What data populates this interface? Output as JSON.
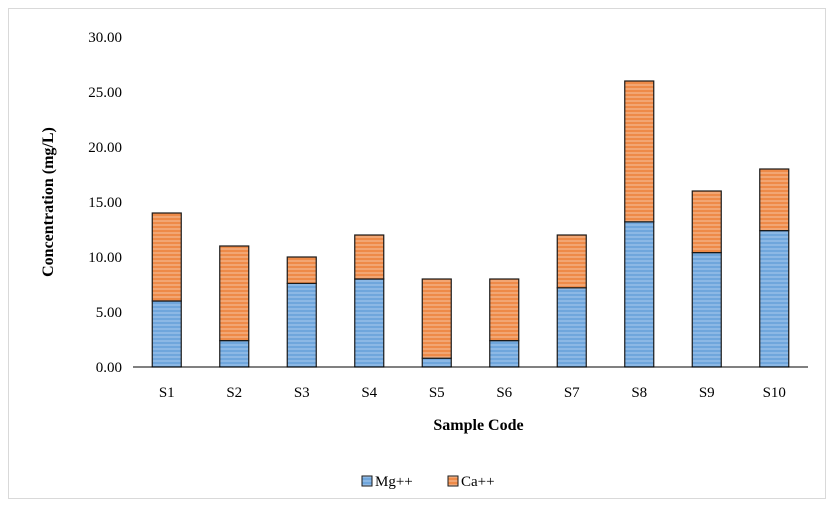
{
  "chart_data": {
    "type": "bar",
    "stacked": true,
    "title": "",
    "xlabel": "Sample Code",
    "ylabel": "Concentration (mg/L)",
    "ylim": [
      0,
      30
    ],
    "yticks": [
      "0.00",
      "5.00",
      "10.00",
      "15.00",
      "20.00",
      "25.00",
      "30.00"
    ],
    "grid": false,
    "legend_position": "bottom",
    "categories": [
      "S1",
      "S2",
      "S3",
      "S4",
      "S5",
      "S6",
      "S7",
      "S8",
      "S9",
      "S10"
    ],
    "series": [
      {
        "name": "Mg++",
        "color": "#5b9bd5",
        "values": [
          6.0,
          2.4,
          7.6,
          8.0,
          0.8,
          2.4,
          7.2,
          13.2,
          10.4,
          12.4
        ]
      },
      {
        "name": "Ca++",
        "color": "#ed7d31",
        "values": [
          8.0,
          8.6,
          2.4,
          4.0,
          7.2,
          5.6,
          4.8,
          12.8,
          5.6,
          5.6
        ]
      }
    ]
  }
}
